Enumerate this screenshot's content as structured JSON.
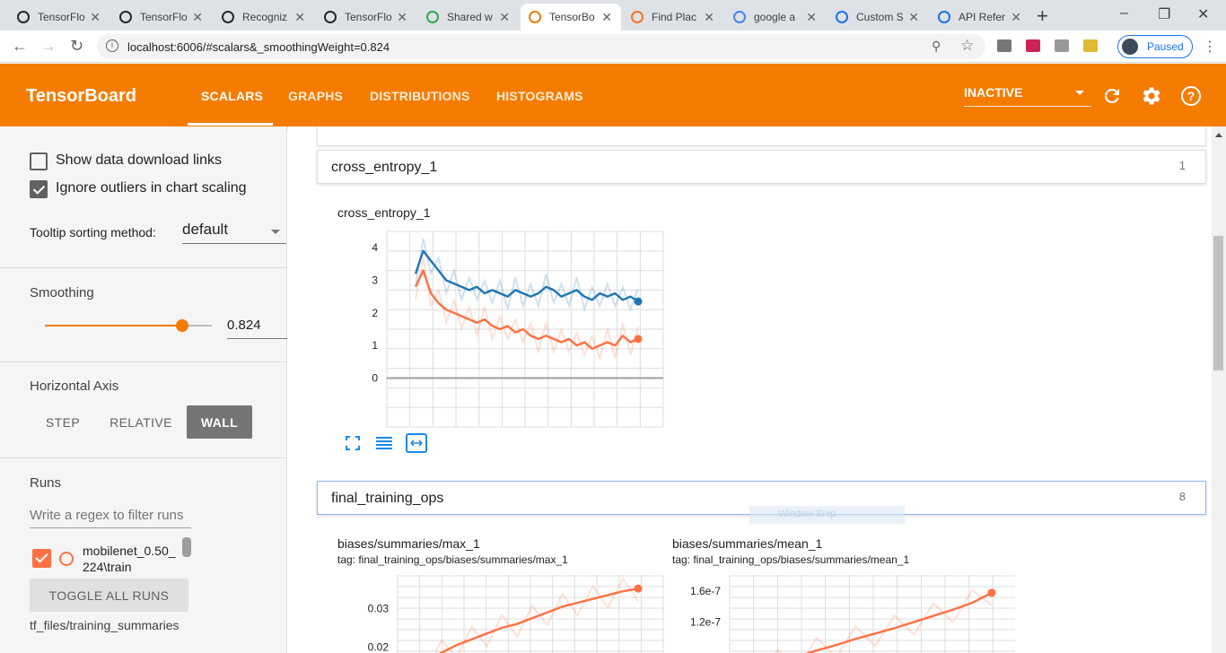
{
  "browser": {
    "tabs": [
      {
        "title": "TensorFlo",
        "icon": "github-icon",
        "active": false
      },
      {
        "title": "TensorFlo",
        "icon": "github-icon",
        "active": false
      },
      {
        "title": "Recogniz",
        "icon": "github-icon",
        "active": false
      },
      {
        "title": "TensorFlo",
        "icon": "github-icon",
        "active": false
      },
      {
        "title": "Shared w",
        "icon": "google-drive-icon",
        "active": false
      },
      {
        "title": "TensorBo",
        "icon": "tensorboard-icon",
        "active": true
      },
      {
        "title": "Find Plac",
        "icon": "jupyter-icon",
        "active": false
      },
      {
        "title": "google a",
        "icon": "google-icon",
        "active": false
      },
      {
        "title": "Custom S",
        "icon": "google-dev-icon",
        "active": false
      },
      {
        "title": "API Refer",
        "icon": "google-dev-icon",
        "active": false
      }
    ],
    "url": "localhost:6006/#scalars&_smoothingWeight=0.824",
    "profile_label": "Paused"
  },
  "header": {
    "title": "TensorBoard",
    "tabs": [
      "SCALARS",
      "GRAPHS",
      "DISTRIBUTIONS",
      "HISTOGRAMS"
    ],
    "active_tab": "SCALARS",
    "run_selector": "INACTIVE",
    "accent": "#f57c00"
  },
  "sidebar": {
    "show_download_links": {
      "label": "Show data download links",
      "checked": false
    },
    "ignore_outliers": {
      "label": "Ignore outliers in chart scaling",
      "checked": true
    },
    "tooltip_label": "Tooltip sorting method:",
    "tooltip_value": "default",
    "smoothing_label": "Smoothing",
    "smoothing_value": "0.824",
    "smoothing_fraction": 0.824,
    "horizontal_axis_label": "Horizontal Axis",
    "axis_options": [
      "STEP",
      "RELATIVE",
      "WALL"
    ],
    "axis_selected": "WALL",
    "runs_label": "Runs",
    "runs_filter_placeholder": "Write a regex to filter runs",
    "run_name": "mobilenet_0.50_ 224\\train",
    "toggle_all": "TOGGLE ALL RUNS",
    "logdir": "tf_files/training_summaries"
  },
  "main": {
    "groups": [
      {
        "name": "cross_entropy_1",
        "count": "1"
      },
      {
        "name": "final_training_ops",
        "count": "8"
      }
    ],
    "overlay_text": "Window Snip"
  },
  "chart_data": [
    {
      "type": "line",
      "title": "cross_entropy_1",
      "ylim": [
        -0.5,
        4.5
      ],
      "yticks": [
        "4",
        "3",
        "2",
        "1",
        "0"
      ],
      "grid": true,
      "series": [
        {
          "color": "#1f77b4",
          "values": [
            3.2,
            3.9,
            3.6,
            3.3,
            3.0,
            2.9,
            2.8,
            2.7,
            2.8,
            2.6,
            2.7,
            2.6,
            2.5,
            2.7,
            2.6,
            2.5,
            2.6,
            2.8,
            2.7,
            2.5,
            2.6,
            2.7,
            2.5,
            2.4,
            2.6,
            2.5,
            2.6,
            2.4,
            2.5,
            2.35
          ]
        },
        {
          "color": "#ff7043",
          "values": [
            2.8,
            3.3,
            2.6,
            2.3,
            2.1,
            2.0,
            1.9,
            1.8,
            1.7,
            1.8,
            1.6,
            1.5,
            1.6,
            1.4,
            1.5,
            1.3,
            1.2,
            1.3,
            1.2,
            1.1,
            1.2,
            1.0,
            1.1,
            0.9,
            1.0,
            1.1,
            1.0,
            1.3,
            1.1,
            1.2
          ]
        }
      ]
    },
    {
      "type": "line",
      "title": "biases/summaries/max_1",
      "tag": "tag: final_training_ops/biases/summaries/max_1",
      "yticks": [
        "0.03",
        "0.02"
      ],
      "grid": true,
      "series": [
        {
          "color": "#ff7043",
          "values": [
            0.0165,
            0.0185,
            0.0205,
            0.022,
            0.0235,
            0.025,
            0.026,
            0.0275,
            0.029,
            0.0305,
            0.0315,
            0.0325,
            0.0335,
            0.0345,
            0.0352
          ]
        }
      ]
    },
    {
      "type": "line",
      "title": "biases/summaries/mean_1",
      "tag": "tag: final_training_ops/biases/summaries/mean_1",
      "yticks": [
        "1.6e-7",
        "1.2e-7"
      ],
      "grid": true,
      "series": [
        {
          "color": "#ff7043",
          "values": [
            6e-08,
            6.8e-08,
            7.5e-08,
            8.3e-08,
            9e-08,
            9.8e-08,
            1.05e-07,
            1.12e-07,
            1.2e-07,
            1.28e-07,
            1.36e-07,
            1.45e-07,
            1.58e-07
          ]
        }
      ]
    }
  ]
}
